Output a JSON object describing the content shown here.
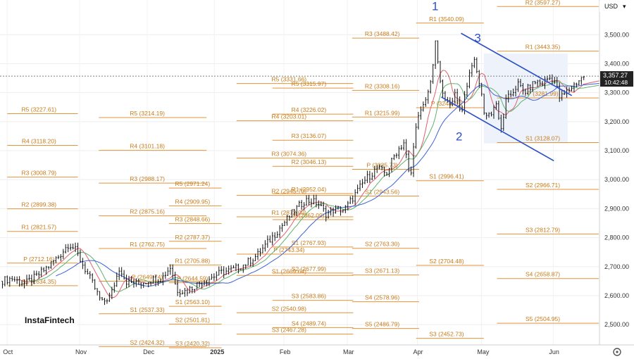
{
  "chart_data": {
    "type": "candlestick",
    "currency": "USD",
    "last_price": "3,357.27",
    "countdown": "10:42:48",
    "brand": "InstaFintech",
    "y_ticks": [
      "3,500.00",
      "3,400.00",
      "3,300.00",
      "3,200.00",
      "3,100.00",
      "3,000.00",
      "2,900.00",
      "2,800.00",
      "2,700.00",
      "2,600.00",
      "2,500.00"
    ],
    "ylim": [
      2430,
      3610
    ],
    "x_labels": [
      "Oct",
      "Nov",
      "Dec",
      "2025",
      "Feb",
      "Mar",
      "Apr",
      "May",
      "Jun"
    ],
    "annotations": [
      {
        "text": "1",
        "x": 0.7267,
        "price": 3585
      },
      {
        "text": "3",
        "x": 0.7978,
        "price": 3475
      },
      {
        "text": "2",
        "x": 0.7667,
        "price": 3135
      }
    ],
    "pivots": [
      {
        "c": 0,
        "label": "R5 (3227.61)",
        "price": 3227.61
      },
      {
        "c": 0,
        "label": "R4 (3118.20)",
        "price": 3118.2
      },
      {
        "c": 0,
        "label": "R3 (3008.79)",
        "price": 3008.79
      },
      {
        "c": 0,
        "label": "R2 (2899.38)",
        "price": 2899.38
      },
      {
        "c": 0,
        "label": "R1 (2821.57)",
        "price": 2821.57
      },
      {
        "c": 0,
        "label": "P (2712.16)",
        "price": 2712.16
      },
      {
        "c": 0,
        "label": "S1 (2634.35)",
        "price": 2634.35
      },
      {
        "c": 1,
        "label": "R5 (3214.19)",
        "price": 3214.19
      },
      {
        "c": 1,
        "label": "R4 (3101.18)",
        "price": 3101.18
      },
      {
        "c": 1,
        "label": "R3 (2988.17)",
        "price": 2988.17
      },
      {
        "c": 1,
        "label": "R2 (2875.16)",
        "price": 2875.16
      },
      {
        "c": 1,
        "label": "R1 (2762.75)",
        "price": 2762.75
      },
      {
        "c": 1,
        "label": "P (2649.74)",
        "price": 2649.74
      },
      {
        "c": 1,
        "label": "S1 (2537.33)",
        "price": 2537.33
      },
      {
        "c": 1,
        "label": "S2 (2424.32)",
        "price": 2424.32
      },
      {
        "c": 2,
        "label": "R5 (2971.24)",
        "price": 2971.24
      },
      {
        "c": 2,
        "label": "R4 (2909.95)",
        "price": 2909.95
      },
      {
        "c": 2,
        "label": "R3 (2848.66)",
        "price": 2848.66
      },
      {
        "c": 2,
        "label": "R2 (2787.37)",
        "price": 2787.37
      },
      {
        "c": 2,
        "label": "R1 (2705.88)",
        "price": 2705.88
      },
      {
        "c": 2,
        "label": "P (2644.59)",
        "price": 2644.59
      },
      {
        "c": 2,
        "label": "S1 (2563.10)",
        "price": 2563.1
      },
      {
        "c": 2,
        "label": "S2 (2501.81)",
        "price": 2501.81
      },
      {
        "c": 2,
        "label": "S3 (2420.32)",
        "price": 2420.32
      },
      {
        "c": 3,
        "label": "R5 (3331.66)",
        "price": 3331.66
      },
      {
        "c": 3,
        "label": "R4 (3203.01)",
        "price": 3203.01
      },
      {
        "c": 3,
        "label": "R3 (3074.36)",
        "price": 3074.36
      },
      {
        "c": 3,
        "label": "R2 (2945.70)",
        "price": 2945.7
      },
      {
        "c": 3,
        "label": "R1 (2872.00)",
        "price": 2872.0
      },
      {
        "c": 3,
        "label": "P (2743.34)",
        "price": 2743.34
      },
      {
        "c": 3,
        "label": "S1 (2669.64)",
        "price": 2669.64
      },
      {
        "c": 3,
        "label": "S2 (2540.98)",
        "price": 2540.98
      },
      {
        "c": 3,
        "label": "S3 (2467.28)",
        "price": 2467.28
      },
      {
        "c": 4,
        "label": "R5 (3315.97)",
        "price": 3315.97
      },
      {
        "c": 4,
        "label": "R4 (3226.02)",
        "price": 3226.02
      },
      {
        "c": 4,
        "label": "R3 (3136.07)",
        "price": 3136.07
      },
      {
        "c": 4,
        "label": "R2 (3046.13)",
        "price": 3046.13
      },
      {
        "c": 4,
        "label": "R1 (2952.04)",
        "price": 2952.04
      },
      {
        "c": 4,
        "label": "P (2862.09)",
        "price": 2862.09
      },
      {
        "c": 4,
        "label": "S1 (2767.93)",
        "price": 2767.93
      },
      {
        "c": 4,
        "label": "S2 (2677.99)",
        "price": 2677.99
      },
      {
        "c": 4,
        "label": "S3 (2583.86)",
        "price": 2583.86
      },
      {
        "c": 4,
        "label": "S4 (2489.74)",
        "price": 2489.74
      },
      {
        "c": 5,
        "label": "R3 (3488.42)",
        "price": 3488.42
      },
      {
        "c": 5,
        "label": "R2 (3308.16)",
        "price": 3308.16
      },
      {
        "c": 5,
        "label": "R1 (3215.99)",
        "price": 3215.99
      },
      {
        "c": 5,
        "label": "P (3035.73)",
        "price": 3035.73
      },
      {
        "c": 5,
        "label": "S1 (2943.56)",
        "price": 2943.56
      },
      {
        "c": 5,
        "label": "S2 (2763.30)",
        "price": 2763.3
      },
      {
        "c": 5,
        "label": "S3 (2671.13)",
        "price": 2671.13
      },
      {
        "c": 5,
        "label": "S4 (2578.96)",
        "price": 2578.96
      },
      {
        "c": 5,
        "label": "S5 (2486.79)",
        "price": 2486.79
      },
      {
        "c": 6,
        "label": "R1 (3540.09)",
        "price": 3540.09
      },
      {
        "c": 6,
        "label": "P (3248.16)",
        "price": 3248.16
      },
      {
        "c": 6,
        "label": "S1 (2996.41)",
        "price": 2996.41
      },
      {
        "c": 6,
        "label": "S2 (2704.48)",
        "price": 2704.48
      },
      {
        "c": 6,
        "label": "S3 (2452.73)",
        "price": 2452.73
      },
      {
        "c": 7,
        "label": "R2 (3597.27)",
        "price": 3597.27
      },
      {
        "c": 7,
        "label": "R1 (3443.35)",
        "price": 3443.35
      },
      {
        "c": 7,
        "label": "P (3281.99)",
        "price": 3281.99
      },
      {
        "c": 7,
        "label": "S1 (3128.07)",
        "price": 3128.07
      },
      {
        "c": 7,
        "label": "S2 (2966.71)",
        "price": 2966.71
      },
      {
        "c": 7,
        "label": "S3 (2812.79)",
        "price": 2812.79
      },
      {
        "c": 7,
        "label": "S4 (2658.87)",
        "price": 2658.87
      },
      {
        "c": 7,
        "label": "S5 (2504.95)",
        "price": 2504.95
      }
    ],
    "price_path": [
      [
        0.0,
        2650
      ],
      [
        0.02,
        2660
      ],
      [
        0.04,
        2640
      ],
      [
        0.06,
        2665
      ],
      [
        0.08,
        2700
      ],
      [
        0.1,
        2740
      ],
      [
        0.115,
        2780
      ],
      [
        0.125,
        2760
      ],
      [
        0.14,
        2700
      ],
      [
        0.155,
        2640
      ],
      [
        0.17,
        2575
      ],
      [
        0.185,
        2600
      ],
      [
        0.2,
        2700
      ],
      [
        0.21,
        2650
      ],
      [
        0.23,
        2640
      ],
      [
        0.25,
        2655
      ],
      [
        0.27,
        2660
      ],
      [
        0.285,
        2700
      ],
      [
        0.295,
        2620
      ],
      [
        0.31,
        2615
      ],
      [
        0.33,
        2640
      ],
      [
        0.35,
        2660
      ],
      [
        0.37,
        2680
      ],
      [
        0.39,
        2690
      ],
      [
        0.41,
        2710
      ],
      [
        0.43,
        2740
      ],
      [
        0.45,
        2790
      ],
      [
        0.47,
        2840
      ],
      [
        0.49,
        2890
      ],
      [
        0.51,
        2930
      ],
      [
        0.53,
        2920
      ],
      [
        0.545,
        2880
      ],
      [
        0.56,
        2900
      ],
      [
        0.575,
        2895
      ],
      [
        0.59,
        2940
      ],
      [
        0.61,
        3000
      ],
      [
        0.63,
        3040
      ],
      [
        0.645,
        3020
      ],
      [
        0.66,
        3090
      ],
      [
        0.675,
        3130
      ],
      [
        0.685,
        2990
      ],
      [
        0.695,
        3200
      ],
      [
        0.705,
        3240
      ],
      [
        0.715,
        3300
      ],
      [
        0.722,
        3380
      ],
      [
        0.728,
        3480
      ],
      [
        0.735,
        3330
      ],
      [
        0.745,
        3260
      ],
      [
        0.76,
        3290
      ],
      [
        0.77,
        3230
      ],
      [
        0.78,
        3330
      ],
      [
        0.79,
        3420
      ],
      [
        0.8,
        3340
      ],
      [
        0.81,
        3220
      ],
      [
        0.82,
        3230
      ],
      [
        0.83,
        3270
      ],
      [
        0.835,
        3150
      ],
      [
        0.845,
        3270
      ],
      [
        0.855,
        3300
      ],
      [
        0.865,
        3330
      ],
      [
        0.875,
        3300
      ],
      [
        0.885,
        3320
      ],
      [
        0.895,
        3340
      ],
      [
        0.905,
        3330
      ],
      [
        0.915,
        3350
      ],
      [
        0.925,
        3350
      ],
      [
        0.935,
        3280
      ],
      [
        0.945,
        3300
      ],
      [
        0.955,
        3320
      ],
      [
        0.965,
        3340
      ],
      [
        0.975,
        3357.27
      ]
    ]
  }
}
